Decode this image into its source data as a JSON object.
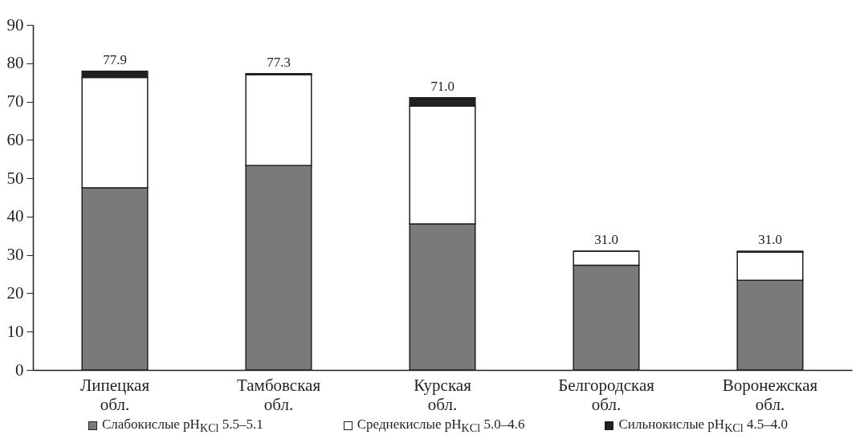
{
  "chart_data": {
    "type": "bar",
    "stacked": true,
    "categories": [
      "Липецкая обл.",
      "Тамбовская обл.",
      "Курская обл.",
      "Белгородская обл.",
      "Воронежская обл."
    ],
    "series": [
      {
        "name": "Слабокислые pH$_{KCl}$ 5.5–5.1",
        "color": "#7a7a7a",
        "values": [
          47.5,
          53.3,
          38.1,
          27.3,
          23.4
        ]
      },
      {
        "name": "Среднекислые pH$_{KCl}$ 5.0–4.6",
        "color": "#ffffff",
        "values": [
          28.8,
          23.7,
          30.7,
          3.7,
          7.3
        ]
      },
      {
        "name": "Сильнокислые pH$_{KCl}$ 4.5–4.0",
        "color": "#231f20",
        "values": [
          1.6,
          0.3,
          2.2,
          0,
          0.3
        ]
      }
    ],
    "totals": [
      "77.9",
      "77.3",
      "71.0",
      "31.0",
      "31.0"
    ],
    "ylim": [
      0,
      90
    ],
    "yticks": [
      0,
      10,
      20,
      30,
      40,
      50,
      60,
      70,
      80,
      90
    ],
    "grid": false,
    "legend": "bottom"
  }
}
